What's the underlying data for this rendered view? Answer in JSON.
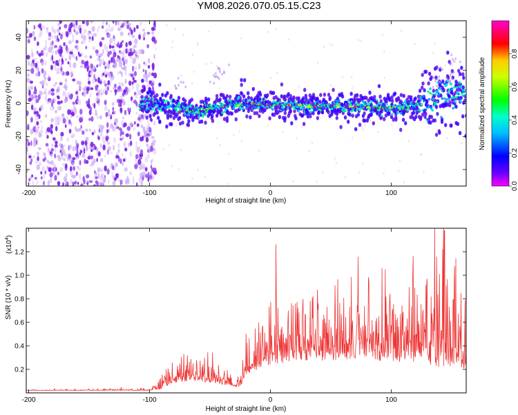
{
  "figure_title": "YM08.2026.070.05.15.C23",
  "colors": {
    "snr_line": "#ee3333",
    "frame": "#000000",
    "background": "#ffffff"
  },
  "chart_data": [
    {
      "type": "heatmap",
      "name": "spectrogram",
      "xlabel": "Height of straight line (km)",
      "ylabel": "Frequency (Hz)",
      "xlim": [
        -202,
        162
      ],
      "ylim": [
        -50,
        50
      ],
      "x_ticks": [
        -200,
        -100,
        0,
        100
      ],
      "y_ticks": [
        -40,
        -20,
        0,
        20,
        40
      ],
      "colorbar": {
        "label": "Normalized spectral amplitude",
        "range": [
          0,
          1
        ],
        "ticks": [
          "0.0",
          "0.2",
          "0.4",
          "0.6",
          "0.8"
        ],
        "tick_values": [
          0,
          0.2,
          0.4,
          0.6,
          0.8
        ],
        "colormap": [
          "#ff00ff",
          "#ff0000",
          "#ffff00",
          "#00ff00",
          "#00ffff",
          "#0000ff",
          "#ff00ff"
        ]
      },
      "features": {
        "noise_region_x": [
          -202,
          -100
        ],
        "ridge_x": [
          -108,
          162
        ],
        "ridge_center_hz": [
          [
            -108,
            0
          ],
          [
            -60,
            -5
          ],
          [
            -30,
            0
          ],
          [
            0,
            -1
          ],
          [
            60,
            -2
          ],
          [
            110,
            -3
          ],
          [
            130,
            0
          ],
          [
            145,
            8
          ],
          [
            162,
            5
          ]
        ],
        "peak_amplitude_near_x": [
          -20,
          100
        ]
      }
    },
    {
      "type": "line",
      "name": "snr",
      "xlabel": "Height of straight line (km)",
      "ylabel": "SNR (10 * v/v)",
      "y_multiplier": "(x10",
      "y_multiplier_exp": "4",
      "y_multiplier_close": ")",
      "xlim": [
        -202,
        162
      ],
      "ylim": [
        0,
        1.4
      ],
      "x_ticks": [
        -200,
        -100,
        0,
        100
      ],
      "y_ticks": [
        0.2,
        0.4,
        0.6,
        0.8,
        1.0,
        1.2
      ],
      "y_tick_labels": [
        "0.2",
        "0.4",
        "0.6",
        "0.8",
        "1.0",
        "1.2"
      ],
      "envelope": {
        "x": [
          -202,
          -100,
          -92,
          -80,
          -60,
          -45,
          -35,
          -25,
          -20,
          -10,
          0,
          20,
          40,
          60,
          80,
          100,
          120,
          140,
          162
        ],
        "baseline": [
          0.02,
          0.02,
          0.03,
          0.08,
          0.1,
          0.08,
          0.06,
          0.05,
          0.15,
          0.2,
          0.22,
          0.28,
          0.25,
          0.28,
          0.3,
          0.25,
          0.25,
          0.22,
          0.2
        ],
        "amplitude": [
          0.005,
          0.01,
          0.05,
          0.12,
          0.15,
          0.1,
          0.05,
          0.05,
          0.18,
          0.25,
          0.35,
          0.35,
          0.4,
          0.4,
          0.45,
          0.5,
          0.5,
          0.55,
          0.45
        ]
      },
      "notable_peaks": [
        {
          "x": 95,
          "y": 1.05
        },
        {
          "x": 144,
          "y": 1.38
        },
        {
          "x": 152,
          "y": 0.95
        }
      ]
    }
  ]
}
